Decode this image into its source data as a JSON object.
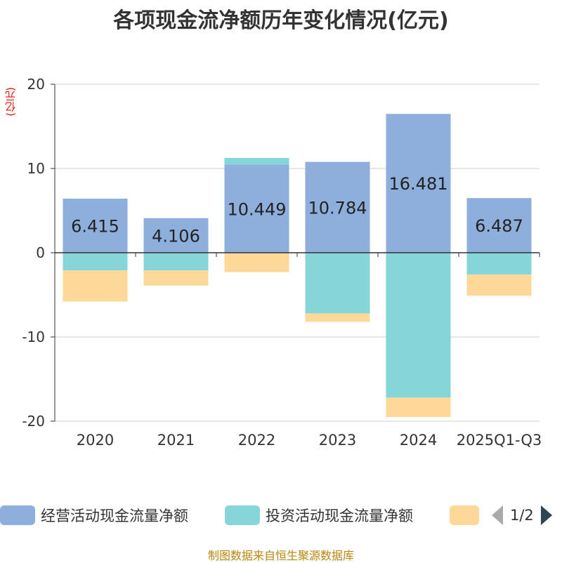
{
  "chart_data": {
    "type": "bar",
    "stacked": true,
    "title": "各项现金流净额历年变化情况(亿元)",
    "ylabel": "(亿元)",
    "ylim": [
      -20,
      20
    ],
    "yticks": [
      20,
      10,
      0,
      -10,
      -20
    ],
    "categories": [
      "2020",
      "2021",
      "2022",
      "2023",
      "2024",
      "2025Q1-Q3"
    ],
    "series": [
      {
        "name": "经营活动现金流量净额",
        "color": "#8eaedb",
        "values": [
          6.415,
          4.106,
          10.449,
          10.784,
          16.481,
          6.487
        ]
      },
      {
        "name": "投资活动现金流量净额",
        "color": "#86d5d8",
        "values": [
          -2.1,
          -2.1,
          0.8,
          -7.2,
          -17.2,
          -2.6
        ]
      },
      {
        "name": "",
        "color": "#fdd898",
        "values": [
          -3.7,
          -1.8,
          -2.3,
          -1.0,
          -2.3,
          -2.5
        ]
      }
    ],
    "data_labels": [
      "6.415",
      "4.106",
      "10.449",
      "10.784",
      "16.481",
      "6.487"
    ]
  },
  "legend": {
    "items": [
      {
        "label": "经营活动现金流量净额",
        "color": "#8eaedb"
      },
      {
        "label": "投资活动现金流量净额",
        "color": "#86d5d8"
      },
      {
        "label": "",
        "color": "#fdd898"
      }
    ],
    "page": "1/2"
  },
  "source_text": "制图数据来自恒生聚源数据库"
}
